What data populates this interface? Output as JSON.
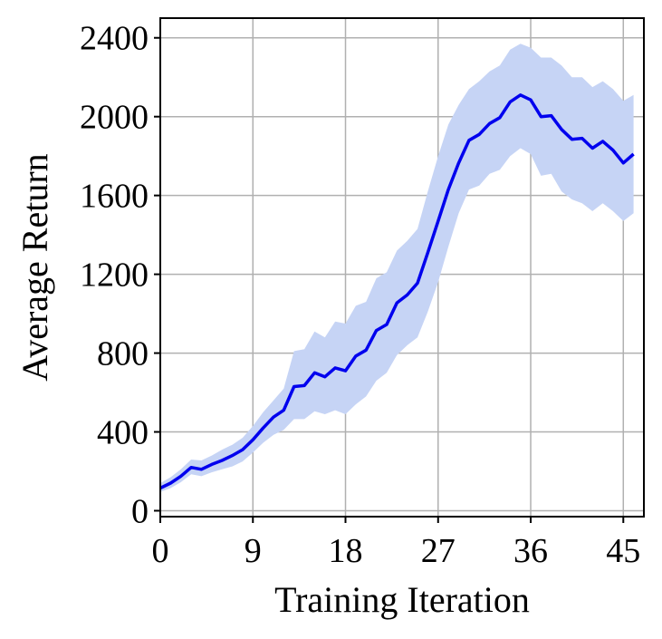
{
  "chart_data": {
    "type": "line",
    "xlabel": "Training Iteration",
    "ylabel": "Average Return",
    "xlim": [
      0,
      47
    ],
    "ylim": [
      -30,
      2500
    ],
    "xticks": [
      0,
      9,
      18,
      27,
      36,
      45
    ],
    "yticks": [
      0,
      400,
      800,
      1200,
      1600,
      2000,
      2400
    ],
    "grid": true,
    "colors": {
      "line": "#0000ee",
      "band": "#c6d4f5",
      "grid": "#b0b0b0"
    },
    "series": [
      {
        "x": [
          0,
          1,
          2,
          3,
          4,
          5,
          6,
          7,
          8,
          9,
          10,
          11,
          12,
          13,
          14,
          15,
          16,
          17,
          18,
          19,
          20,
          21,
          22,
          23,
          24,
          25,
          26,
          27,
          28,
          29,
          30,
          31,
          32,
          33,
          34,
          35,
          36,
          37,
          38,
          39,
          40,
          41,
          42,
          43,
          44,
          45,
          46
        ],
        "values": [
          115,
          140,
          175,
          220,
          210,
          235,
          255,
          280,
          310,
          360,
          420,
          475,
          510,
          630,
          635,
          700,
          680,
          725,
          710,
          785,
          815,
          915,
          945,
          1055,
          1095,
          1155,
          1310,
          1470,
          1630,
          1765,
          1880,
          1910,
          1965,
          1995,
          2075,
          2110,
          2085,
          2000,
          2005,
          1935,
          1885,
          1890,
          1840,
          1875,
          1830,
          1765,
          1810
        ],
        "upper": [
          140,
          170,
          210,
          260,
          255,
          280,
          310,
          335,
          370,
          430,
          500,
          560,
          620,
          810,
          820,
          910,
          880,
          960,
          950,
          1040,
          1060,
          1180,
          1210,
          1320,
          1370,
          1430,
          1620,
          1800,
          1960,
          2060,
          2140,
          2180,
          2230,
          2260,
          2340,
          2370,
          2350,
          2300,
          2300,
          2260,
          2200,
          2200,
          2150,
          2180,
          2140,
          2080,
          2110
        ],
        "lower": [
          95,
          115,
          145,
          185,
          175,
          195,
          210,
          225,
          250,
          295,
          345,
          385,
          410,
          465,
          465,
          505,
          490,
          510,
          490,
          540,
          580,
          660,
          700,
          790,
          840,
          880,
          1010,
          1160,
          1340,
          1510,
          1630,
          1650,
          1710,
          1730,
          1800,
          1840,
          1810,
          1700,
          1710,
          1620,
          1580,
          1560,
          1520,
          1560,
          1520,
          1470,
          1510
        ]
      }
    ]
  }
}
